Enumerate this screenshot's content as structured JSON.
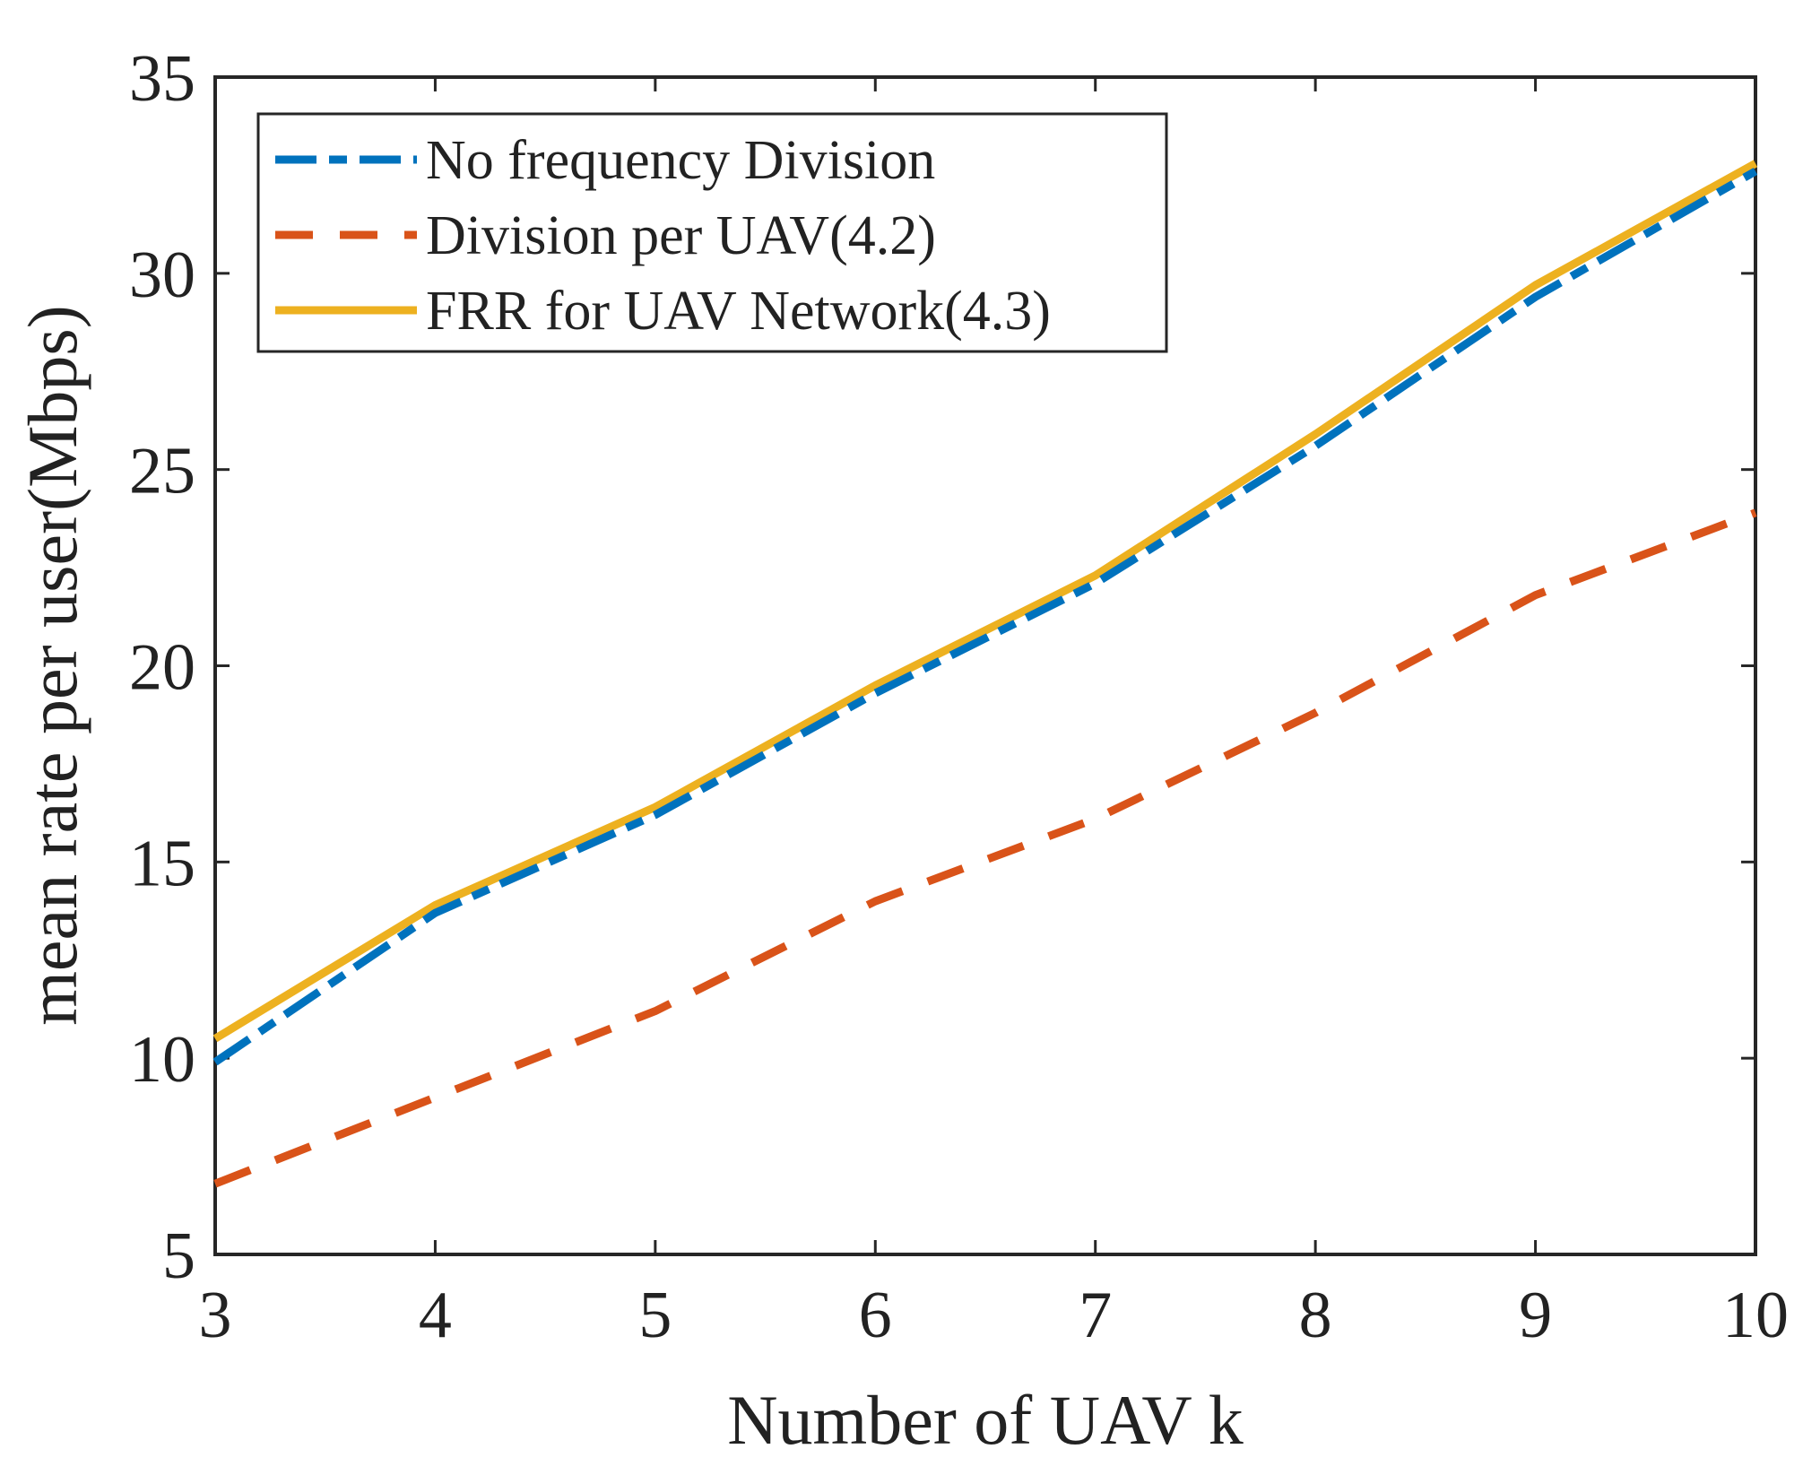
{
  "chart_data": {
    "type": "line",
    "title": "",
    "xlabel": "Number of UAV k",
    "ylabel": "mean rate per user(Mbps)",
    "xlim": [
      3,
      10
    ],
    "ylim": [
      5,
      35
    ],
    "xticks": [
      3,
      4,
      5,
      6,
      7,
      8,
      9,
      10
    ],
    "yticks": [
      5,
      10,
      15,
      20,
      25,
      30,
      35
    ],
    "x": [
      3,
      4,
      5,
      6,
      7,
      8,
      9,
      10
    ],
    "grid": false,
    "legend_position": "top-left",
    "series": [
      {
        "name": "No frequency Division",
        "values": [
          9.9,
          13.7,
          16.2,
          19.3,
          22.1,
          25.6,
          29.4,
          32.6
        ],
        "color": "#0072BD",
        "style": "dash-dot"
      },
      {
        "name": "Division per UAV(4.2)",
        "values": [
          6.8,
          9.0,
          11.2,
          14.0,
          16.1,
          18.8,
          21.8,
          23.9
        ],
        "color": "#D95319",
        "style": "dashed"
      },
      {
        "name": "FRR for UAV Network(4.3)",
        "values": [
          10.5,
          13.9,
          16.4,
          19.5,
          22.3,
          25.9,
          29.7,
          32.8
        ],
        "color": "#EDB120",
        "style": "solid"
      }
    ]
  }
}
